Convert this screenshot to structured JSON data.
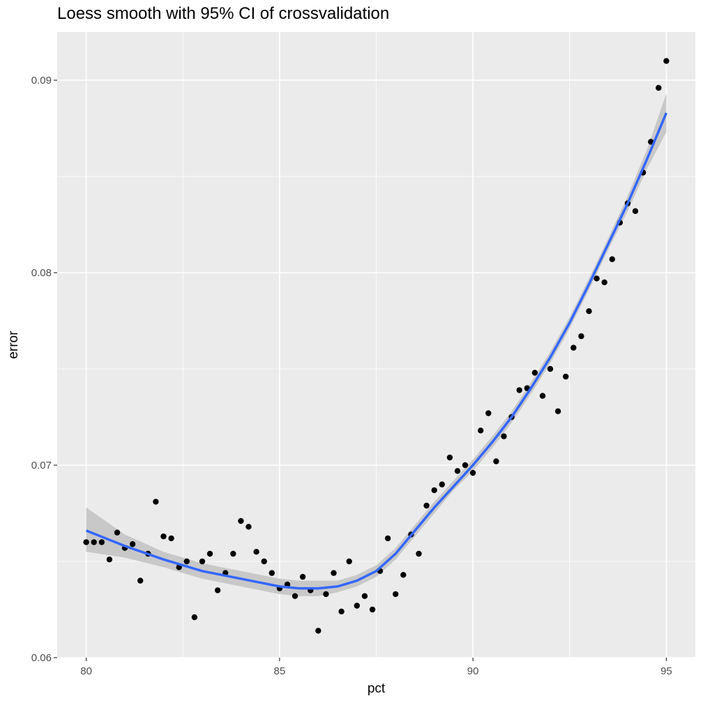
{
  "chart_data": {
    "type": "scatter",
    "title": "Loess smooth with 95% CI of crossvalidation",
    "xlabel": "pct",
    "ylabel": "error",
    "xlim": [
      79.25,
      95.75
    ],
    "ylim": [
      0.06,
      0.0925
    ],
    "x_ticks": [
      80,
      85,
      90,
      95
    ],
    "x_tick_labels": [
      "80",
      "85",
      "90",
      "95"
    ],
    "y_ticks": [
      0.06,
      0.07,
      0.08,
      0.09
    ],
    "y_tick_labels": [
      "0.06",
      "0.07",
      "0.08",
      "0.09"
    ],
    "grid": true,
    "series": [
      {
        "kind": "points",
        "color": "#000000",
        "points": [
          [
            80.0,
            0.066
          ],
          [
            80.2,
            0.066
          ],
          [
            80.4,
            0.066
          ],
          [
            80.6,
            0.0651
          ],
          [
            80.8,
            0.0665
          ],
          [
            81.0,
            0.0657
          ],
          [
            81.2,
            0.0659
          ],
          [
            81.4,
            0.064
          ],
          [
            81.6,
            0.0654
          ],
          [
            81.8,
            0.0681
          ],
          [
            82.0,
            0.0663
          ],
          [
            82.2,
            0.0662
          ],
          [
            82.4,
            0.0647
          ],
          [
            82.6,
            0.065
          ],
          [
            82.8,
            0.0621
          ],
          [
            83.0,
            0.065
          ],
          [
            83.2,
            0.0654
          ],
          [
            83.4,
            0.0635
          ],
          [
            83.6,
            0.0644
          ],
          [
            83.8,
            0.0654
          ],
          [
            84.0,
            0.0671
          ],
          [
            84.2,
            0.0668
          ],
          [
            84.4,
            0.0655
          ],
          [
            84.6,
            0.065
          ],
          [
            84.8,
            0.0644
          ],
          [
            85.0,
            0.0636
          ],
          [
            85.2,
            0.0638
          ],
          [
            85.4,
            0.0632
          ],
          [
            85.6,
            0.0642
          ],
          [
            85.8,
            0.0635
          ],
          [
            86.0,
            0.0614
          ],
          [
            86.2,
            0.0633
          ],
          [
            86.4,
            0.0644
          ],
          [
            86.6,
            0.0624
          ],
          [
            86.8,
            0.065
          ],
          [
            87.0,
            0.0627
          ],
          [
            87.2,
            0.0632
          ],
          [
            87.4,
            0.0625
          ],
          [
            87.6,
            0.0645
          ],
          [
            87.8,
            0.0662
          ],
          [
            88.0,
            0.0633
          ],
          [
            88.2,
            0.0643
          ],
          [
            88.4,
            0.0664
          ],
          [
            88.6,
            0.0654
          ],
          [
            88.8,
            0.0679
          ],
          [
            89.0,
            0.0687
          ],
          [
            89.2,
            0.069
          ],
          [
            89.4,
            0.0704
          ],
          [
            89.6,
            0.0697
          ],
          [
            89.8,
            0.07
          ],
          [
            90.0,
            0.0696
          ],
          [
            90.2,
            0.0718
          ],
          [
            90.4,
            0.0727
          ],
          [
            90.6,
            0.0702
          ],
          [
            90.8,
            0.0715
          ],
          [
            91.0,
            0.0725
          ],
          [
            91.2,
            0.0739
          ],
          [
            91.4,
            0.074
          ],
          [
            91.6,
            0.0748
          ],
          [
            91.8,
            0.0736
          ],
          [
            92.0,
            0.075
          ],
          [
            92.2,
            0.0728
          ],
          [
            92.4,
            0.0746
          ],
          [
            92.6,
            0.0761
          ],
          [
            92.8,
            0.0767
          ],
          [
            93.0,
            0.078
          ],
          [
            93.2,
            0.0797
          ],
          [
            93.4,
            0.0795
          ],
          [
            93.6,
            0.0807
          ],
          [
            93.8,
            0.0826
          ],
          [
            94.0,
            0.0836
          ],
          [
            94.2,
            0.0832
          ],
          [
            94.4,
            0.0852
          ],
          [
            94.6,
            0.0868
          ],
          [
            94.8,
            0.0896
          ],
          [
            95.0,
            0.091
          ]
        ]
      },
      {
        "kind": "loess",
        "color": "#3366ff",
        "ribbon_color": "#c8c8c8",
        "x": [
          80,
          81,
          82,
          83,
          84,
          85,
          85.5,
          86,
          86.5,
          87,
          87.5,
          88,
          88.5,
          89,
          89.5,
          90,
          90.5,
          91,
          91.5,
          92,
          92.5,
          93,
          93.5,
          94,
          94.5,
          95
        ],
        "fit": [
          0.0666,
          0.0658,
          0.0651,
          0.0645,
          0.0641,
          0.0637,
          0.0636,
          0.0636,
          0.0637,
          0.064,
          0.0645,
          0.0654,
          0.0666,
          0.0678,
          0.0689,
          0.07,
          0.0712,
          0.0725,
          0.074,
          0.0756,
          0.0774,
          0.0794,
          0.0815,
          0.0836,
          0.0859,
          0.0883
        ],
        "lower": [
          0.0655,
          0.0652,
          0.0647,
          0.0641,
          0.0637,
          0.0633,
          0.0632,
          0.0632,
          0.0634,
          0.0637,
          0.0642,
          0.0651,
          0.0663,
          0.0675,
          0.0687,
          0.0697,
          0.0709,
          0.0722,
          0.0737,
          0.0753,
          0.0771,
          0.0791,
          0.0812,
          0.0832,
          0.0854,
          0.0873
        ],
        "upper": [
          0.0678,
          0.0664,
          0.0655,
          0.0649,
          0.0645,
          0.0641,
          0.064,
          0.064,
          0.064,
          0.0643,
          0.0648,
          0.0657,
          0.0669,
          0.0681,
          0.0692,
          0.0703,
          0.0715,
          0.0728,
          0.0743,
          0.0759,
          0.0777,
          0.0797,
          0.0818,
          0.084,
          0.0864,
          0.0893
        ]
      }
    ]
  }
}
